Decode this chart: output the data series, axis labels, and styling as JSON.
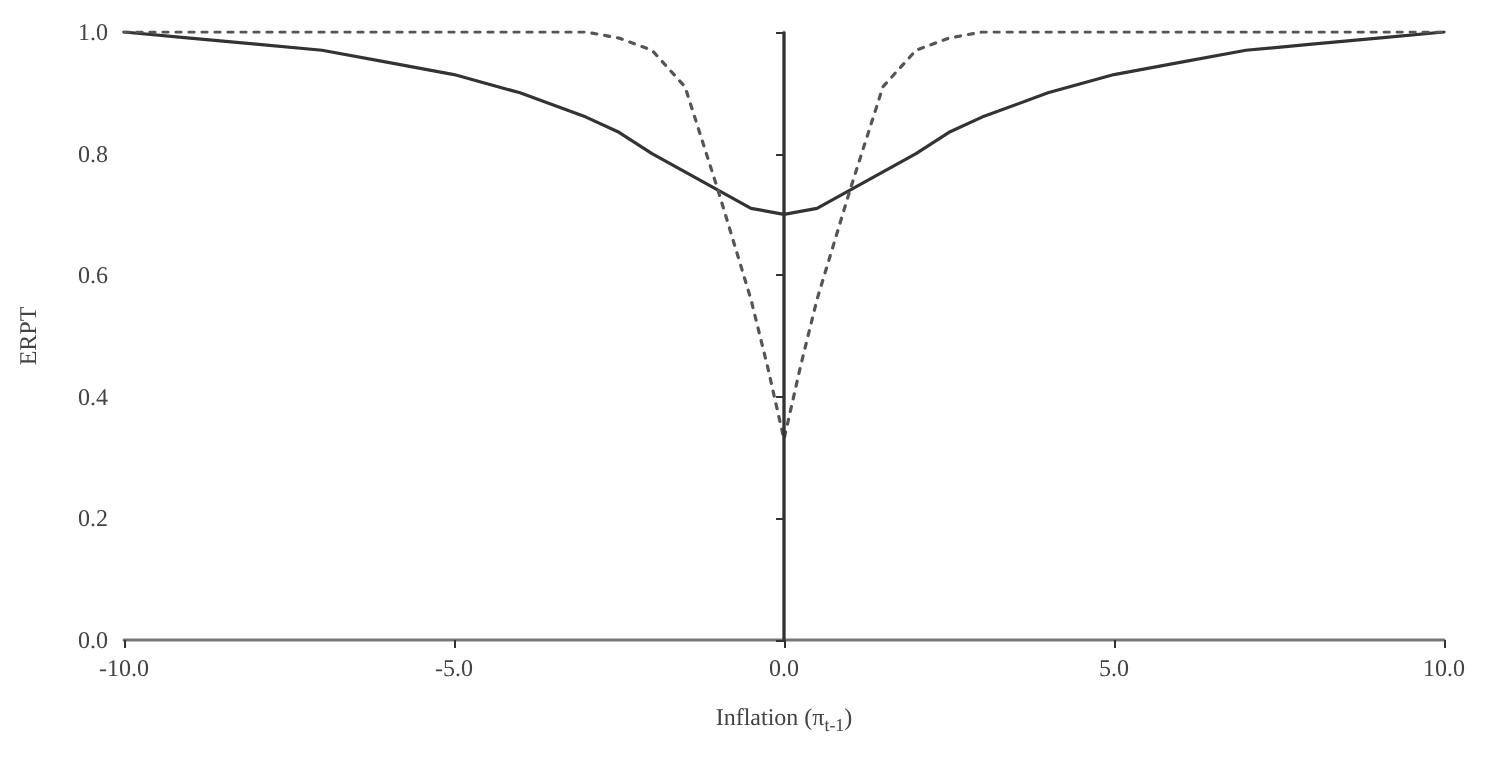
{
  "chart_data": {
    "type": "line",
    "xlabel": "Inflation (π$_{t-1}$)",
    "ylabel": "ERPT",
    "x": [
      -10,
      -9,
      -8,
      -7,
      -6,
      -5,
      -4,
      -3,
      -2.5,
      -2,
      -1.5,
      -1,
      -0.5,
      -0.25,
      0,
      0.25,
      0.5,
      1,
      1.5,
      2,
      2.5,
      3,
      4,
      5,
      6,
      7,
      8,
      9,
      10
    ],
    "series": [
      {
        "color": "#333333",
        "line_style": "solid",
        "values": [
          1.0,
          0.99,
          0.98,
          0.97,
          0.95,
          0.93,
          0.9,
          0.86,
          0.835,
          0.8,
          0.77,
          0.74,
          0.71,
          0.705,
          0.7,
          0.705,
          0.71,
          0.74,
          0.77,
          0.8,
          0.835,
          0.86,
          0.9,
          0.93,
          0.95,
          0.97,
          0.98,
          0.99,
          1.0
        ]
      },
      {
        "color": "#555555",
        "line_style": "dotted",
        "values": [
          1,
          1,
          1,
          1,
          1,
          1,
          1,
          1,
          0.99,
          0.97,
          0.91,
          0.74,
          0.56,
          0.45,
          0.33,
          0.45,
          0.56,
          0.74,
          0.91,
          0.97,
          0.99,
          1,
          1,
          1,
          1,
          1,
          1,
          1,
          1
        ]
      }
    ],
    "xlim": [
      -10,
      10
    ],
    "xticks": [
      {
        "value": -10,
        "label": "-10.0"
      },
      {
        "value": -5,
        "label": "-5.0"
      },
      {
        "value": 0,
        "label": "0.0"
      },
      {
        "value": 5,
        "label": "5.0"
      },
      {
        "value": 10,
        "label": "10.0"
      }
    ],
    "ylim": [
      0,
      1
    ],
    "yticks": [
      {
        "value": 0,
        "label": "0.0"
      },
      {
        "value": 0.2,
        "label": "0.2"
      },
      {
        "value": 0.4,
        "label": "0.4"
      },
      {
        "value": 0.6,
        "label": "0.6"
      },
      {
        "value": 0.8,
        "label": "0.8"
      },
      {
        "value": 1,
        "label": "1.0"
      }
    ],
    "ref_lines": [
      {
        "axis": "x",
        "value": 0,
        "color": "#333333",
        "line_style": "solid"
      }
    ],
    "marker": "none"
  }
}
